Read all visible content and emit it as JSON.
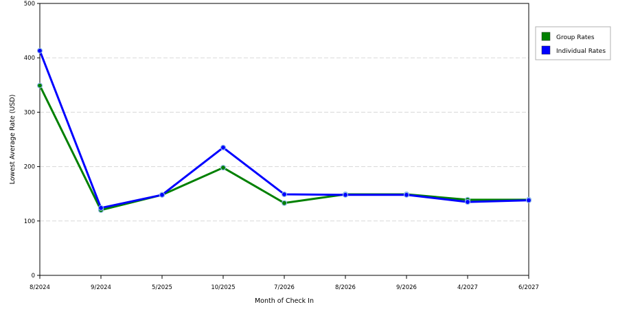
{
  "chart_data": {
    "type": "line",
    "title": "",
    "xlabel": "Month of Check In",
    "ylabel": "Lowest Average Rate (USD)",
    "categories": [
      "8/2024",
      "9/2024",
      "5/2025",
      "10/2025",
      "7/2026",
      "8/2026",
      "9/2026",
      "4/2027",
      "6/2027"
    ],
    "ylim": [
      0,
      500
    ],
    "yticks": [
      "0",
      "100",
      "200",
      "300",
      "400",
      "500"
    ],
    "grid": true,
    "legend_position": "top-right",
    "series": [
      {
        "name": "Group Rates",
        "color": "#008000",
        "values": [
          349,
          120,
          148,
          198,
          133,
          149,
          149,
          139,
          139
        ]
      },
      {
        "name": "Individual Rates",
        "color": "#0000ff",
        "values": [
          413,
          124,
          148,
          235,
          149,
          148,
          148,
          135,
          138
        ]
      }
    ]
  }
}
